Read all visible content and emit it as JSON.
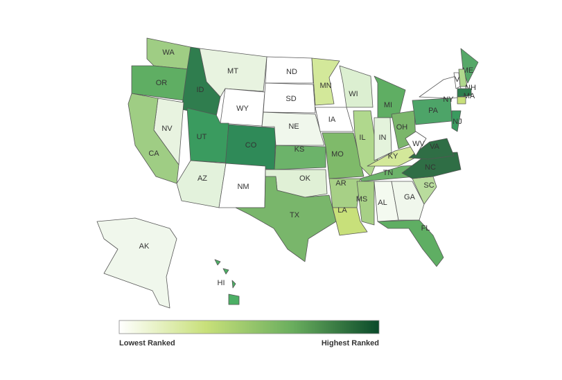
{
  "map": {
    "states": [
      {
        "label": "WA",
        "color": "#9fcd84"
      },
      {
        "label": "OR",
        "color": "#5fae63"
      },
      {
        "label": "ID",
        "color": "#2f7d4e"
      },
      {
        "label": "MT",
        "color": "#e8f3e0"
      },
      {
        "label": "WY",
        "color": "#ffffff"
      },
      {
        "label": "NV",
        "color": "#e8f3e0"
      },
      {
        "label": "CA",
        "color": "#9fcd84"
      },
      {
        "label": "UT",
        "color": "#3a9b5f"
      },
      {
        "label": "CO",
        "color": "#2f8a58"
      },
      {
        "label": "AZ",
        "color": "#e3f2dc"
      },
      {
        "label": "NM",
        "color": "#ffffff"
      },
      {
        "label": "ND",
        "color": "#ffffff"
      },
      {
        "label": "SD",
        "color": "#ffffff"
      },
      {
        "label": "NE",
        "color": "#f0f7ec"
      },
      {
        "label": "KS",
        "color": "#6cb36a"
      },
      {
        "label": "OK",
        "color": "#e0f0d6"
      },
      {
        "label": "TX",
        "color": "#79b66b"
      },
      {
        "label": "MN",
        "color": "#d3e89a"
      },
      {
        "label": "IA",
        "color": "#ffffff"
      },
      {
        "label": "MO",
        "color": "#7fba6a"
      },
      {
        "label": "AR",
        "color": "#a7d086"
      },
      {
        "label": "LA",
        "color": "#c8e07a"
      },
      {
        "label": "WI",
        "color": "#dcefd1"
      },
      {
        "label": "IL",
        "color": "#b0d88d"
      },
      {
        "label": "MI",
        "color": "#5fae63"
      },
      {
        "label": "IN",
        "color": "#e4f3dc"
      },
      {
        "label": "OH",
        "color": "#7bb66b"
      },
      {
        "label": "KY",
        "color": "#d3e89a"
      },
      {
        "label": "TN",
        "color": "#6cb36a"
      },
      {
        "label": "MS",
        "color": "#a7d086"
      },
      {
        "label": "AL",
        "color": "#f4faf0"
      },
      {
        "label": "GA",
        "color": "#f0f7ec"
      },
      {
        "label": "FL",
        "color": "#5fae63"
      },
      {
        "label": "SC",
        "color": "#b9dc9d"
      },
      {
        "label": "NC",
        "color": "#2f6e45"
      },
      {
        "label": "VA",
        "color": "#2f6e45"
      },
      {
        "label": "WV",
        "color": "#ffffff"
      },
      {
        "label": "PA",
        "color": "#4da468"
      },
      {
        "label": "NY",
        "color": "#ffffff"
      },
      {
        "label": "NJ",
        "color": "#3a9b5f"
      },
      {
        "label": "ME",
        "color": "#56a868"
      },
      {
        "label": "VT",
        "color": "#ffffff"
      },
      {
        "label": "NH",
        "color": "#b0d88d"
      },
      {
        "label": "MA",
        "color": "#2f7d4e"
      },
      {
        "color": "#c8e07a"
      },
      {
        "label": "AK",
        "color": "#f0f7ec"
      },
      {
        "label": "HI",
        "color": "#4caf65"
      }
    ]
  },
  "legend": {
    "low_label": "Lowest Ranked",
    "high_label": "Highest Ranked",
    "colors": [
      "#ffffff",
      "#c8e07a",
      "#6aae5e",
      "#0a4a2a"
    ]
  }
}
